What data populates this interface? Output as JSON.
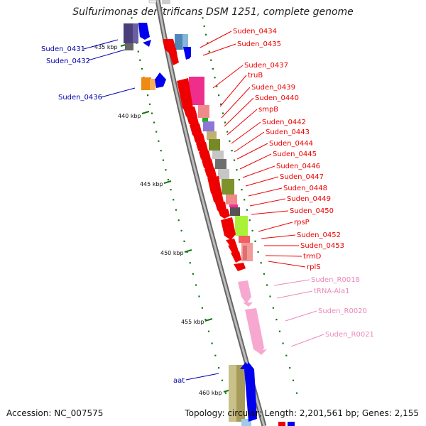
{
  "title": "Sulfurimonas denitrificans DSM 1251, complete genome",
  "accession": "Accession: NC_007575",
  "topology": "Topology: circular; Length: 2,201,561 bp; Genes: 2,155",
  "colors": {
    "protein_label": "#ee0000",
    "rna_label": "#ee88bb",
    "reverse_label": "#0000aa",
    "forward_arrow": "#ee0000",
    "reverse_arrow": "#0000ee",
    "rna_arrow": "#f7a8d0",
    "backbone": "#888888",
    "tick": "#117711"
  },
  "kbp_marks": [
    "435 kbp",
    "440 kbp",
    "445 kbp",
    "450 kbp",
    "455 kbp",
    "460 kbp"
  ],
  "right_labels": [
    {
      "text": "Suden_0434",
      "kind": "protein"
    },
    {
      "text": "Suden_0435",
      "kind": "protein"
    },
    {
      "text": "Suden_0437",
      "kind": "protein"
    },
    {
      "text": "truB",
      "kind": "protein"
    },
    {
      "text": "Suden_0439",
      "kind": "protein"
    },
    {
      "text": "Suden_0440",
      "kind": "protein"
    },
    {
      "text": "smpB",
      "kind": "protein"
    },
    {
      "text": "Suden_0442",
      "kind": "protein"
    },
    {
      "text": "Suden_0443",
      "kind": "protein"
    },
    {
      "text": "Suden_0444",
      "kind": "protein"
    },
    {
      "text": "Suden_0445",
      "kind": "protein"
    },
    {
      "text": "Suden_0446",
      "kind": "protein"
    },
    {
      "text": "Suden_0447",
      "kind": "protein"
    },
    {
      "text": "Suden_0448",
      "kind": "protein"
    },
    {
      "text": "Suden_0449",
      "kind": "protein"
    },
    {
      "text": "Suden_0450",
      "kind": "protein"
    },
    {
      "text": "rpsP",
      "kind": "protein"
    },
    {
      "text": "Suden_0452",
      "kind": "protein"
    },
    {
      "text": "Suden_0453",
      "kind": "protein"
    },
    {
      "text": "trmD",
      "kind": "protein"
    },
    {
      "text": "rplS",
      "kind": "protein"
    },
    {
      "text": "Suden_R0018",
      "kind": "rna"
    },
    {
      "text": "tRNA-Ala1",
      "kind": "rna"
    },
    {
      "text": "Suden_R0020",
      "kind": "rna"
    },
    {
      "text": "Suden_R0021",
      "kind": "rna"
    }
  ],
  "left_labels": [
    {
      "text": "Suden_0431"
    },
    {
      "text": "Suden_0432"
    },
    {
      "text": "Suden_0436"
    },
    {
      "text": "aat"
    }
  ]
}
